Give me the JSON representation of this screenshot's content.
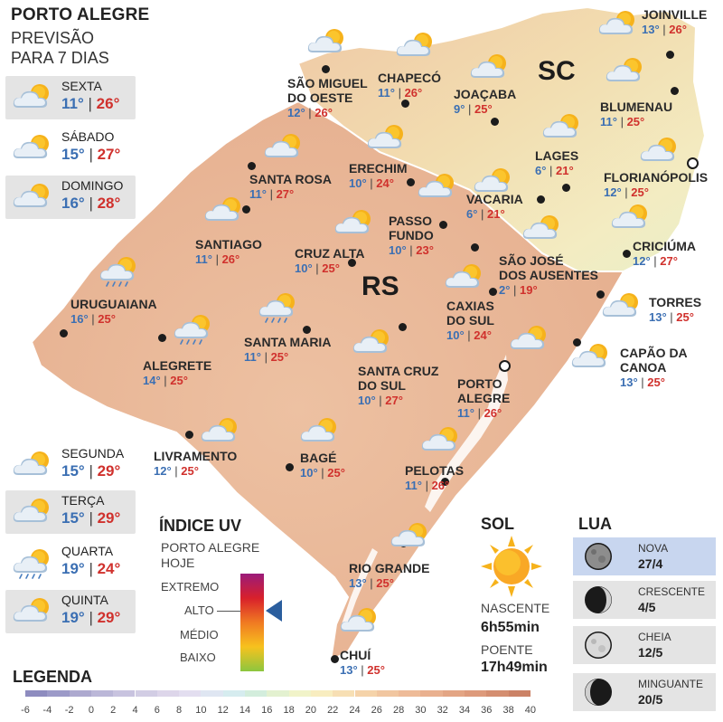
{
  "header": {
    "title": "PORTO ALEGRE",
    "subtitle_line1": "PREVISÃO",
    "subtitle_line2": "PARA 7 DIAS"
  },
  "days": [
    {
      "name": "SEXTA",
      "min": "11°",
      "max": "26°",
      "icon": "partly-cloudy-icon"
    },
    {
      "name": "SÁBADO",
      "min": "15°",
      "max": "27°",
      "icon": "partly-cloudy-icon"
    },
    {
      "name": "DOMINGO",
      "min": "16°",
      "max": "28°",
      "icon": "partly-cloudy-icon"
    },
    {
      "name": "SEGUNDA",
      "min": "15°",
      "max": "29°",
      "icon": "partly-cloudy-icon"
    },
    {
      "name": "TERÇA",
      "min": "15°",
      "max": "29°",
      "icon": "partly-cloudy-icon"
    },
    {
      "name": "QUARTA",
      "min": "19°",
      "max": "24°",
      "icon": "sun-rain-icon"
    },
    {
      "name": "QUINTA",
      "min": "19°",
      "max": "29°",
      "icon": "partly-cloudy-icon"
    }
  ],
  "states": {
    "rs": "RS",
    "sc": "SC"
  },
  "cities": [
    {
      "name": "SÃO MIGUEL\nDO OESTE",
      "min": "12°",
      "max": "26°"
    },
    {
      "name": "CHAPECÓ",
      "min": "11°",
      "max": "26°"
    },
    {
      "name": "JOAÇABA",
      "min": "9°",
      "max": "25°"
    },
    {
      "name": "JOINVILLE",
      "min": "13°",
      "max": "26°"
    },
    {
      "name": "BLUMENAU",
      "min": "11°",
      "max": "25°"
    },
    {
      "name": "LAGES",
      "min": "6°",
      "max": "21°"
    },
    {
      "name": "FLORIANÓPOLIS",
      "min": "12°",
      "max": "25°"
    },
    {
      "name": "SANTA ROSA",
      "min": "11°",
      "max": "27°"
    },
    {
      "name": "ERECHIM",
      "min": "10°",
      "max": "24°"
    },
    {
      "name": "VACARIA",
      "min": "6°",
      "max": "21°"
    },
    {
      "name": "PASSO\nFUNDO",
      "min": "10°",
      "max": "23°"
    },
    {
      "name": "SANTIAGO",
      "min": "11°",
      "max": "26°"
    },
    {
      "name": "CRUZ ALTA",
      "min": "10°",
      "max": "25°"
    },
    {
      "name": "SÃO JOSÉ\nDOS AUSENTES",
      "min": "2°",
      "max": "19°"
    },
    {
      "name": "CRICIÚMA",
      "min": "12°",
      "max": "27°"
    },
    {
      "name": "URUGUAIANA",
      "min": "16°",
      "max": "25°"
    },
    {
      "name": "CAXIAS\nDO SUL",
      "min": "10°",
      "max": "24°"
    },
    {
      "name": "TORRES",
      "min": "13°",
      "max": "25°"
    },
    {
      "name": "ALEGRETE",
      "min": "14°",
      "max": "25°"
    },
    {
      "name": "SANTA MARIA",
      "min": "11°",
      "max": "25°"
    },
    {
      "name": "CAPÃO DA\nCANOA",
      "min": "13°",
      "max": "25°"
    },
    {
      "name": "SANTA CRUZ\nDO SUL",
      "min": "10°",
      "max": "27°"
    },
    {
      "name": "PORTO\nALEGRE",
      "min": "11°",
      "max": "26°"
    },
    {
      "name": "LIVRAMENTO",
      "min": "12°",
      "max": "25°"
    },
    {
      "name": "BAGÉ",
      "min": "10°",
      "max": "25°"
    },
    {
      "name": "PELOTAS",
      "min": "11°",
      "max": "26°"
    },
    {
      "name": "RIO GRANDE",
      "min": "13°",
      "max": "25°"
    },
    {
      "name": "CHUÍ",
      "min": "13°",
      "max": "25°"
    }
  ],
  "uv": {
    "title": "ÍNDICE UV",
    "subtitle_line1": "PORTO ALEGRE",
    "subtitle_line2": "HOJE",
    "levels": [
      "EXTREMO",
      "ALTO",
      "MÉDIO",
      "BAIXO"
    ],
    "current": "ALTO",
    "colors": [
      "#9b1b7a",
      "#d8202b",
      "#f07a22",
      "#f7c21e",
      "#8cc63f"
    ]
  },
  "sun": {
    "title": "SOL",
    "sunrise_label": "NASCENTE",
    "sunrise": "6h55min",
    "sunset_label": "POENTE",
    "sunset": "17h49min"
  },
  "moon": {
    "title": "LUA",
    "phases": [
      {
        "label": "NOVA",
        "date": "27/4",
        "highlight": true
      },
      {
        "label": "CRESCENTE",
        "date": "4/5",
        "highlight": false
      },
      {
        "label": "CHEIA",
        "date": "12/5",
        "highlight": false
      },
      {
        "label": "MINGUANTE",
        "date": "20/5",
        "highlight": false
      }
    ]
  },
  "legend": {
    "title": "LEGENDA",
    "ticks": [
      "-6",
      "-4",
      "-2",
      "0",
      "2",
      "4",
      "6",
      "8",
      "10",
      "12",
      "14",
      "16",
      "18",
      "20",
      "22",
      "24",
      "26",
      "28",
      "30",
      "32",
      "34",
      "36",
      "38",
      "40"
    ],
    "colors": [
      "#8e8cbf",
      "#9c9ac8",
      "#ada9cf",
      "#bbb7d8",
      "#c8c3df",
      "#d2cde4",
      "#ddd6ea",
      "#e3def0",
      "#dfe6f2",
      "#d6ecef",
      "#d3eddc",
      "#e3f1d0",
      "#f1f3c9",
      "#f8edc0",
      "#f7dfb4",
      "#f5d3a9",
      "#f1c6a0",
      "#eebb98",
      "#e9b08f",
      "#e3a584",
      "#dd9a7b",
      "#d48e70",
      "#cb8266"
    ]
  },
  "colors": {
    "min_temp": "#3b6fb3",
    "max_temp": "#d0312d",
    "rs_fill": "#e8b799",
    "sc_fill": "#f2e3b6"
  }
}
